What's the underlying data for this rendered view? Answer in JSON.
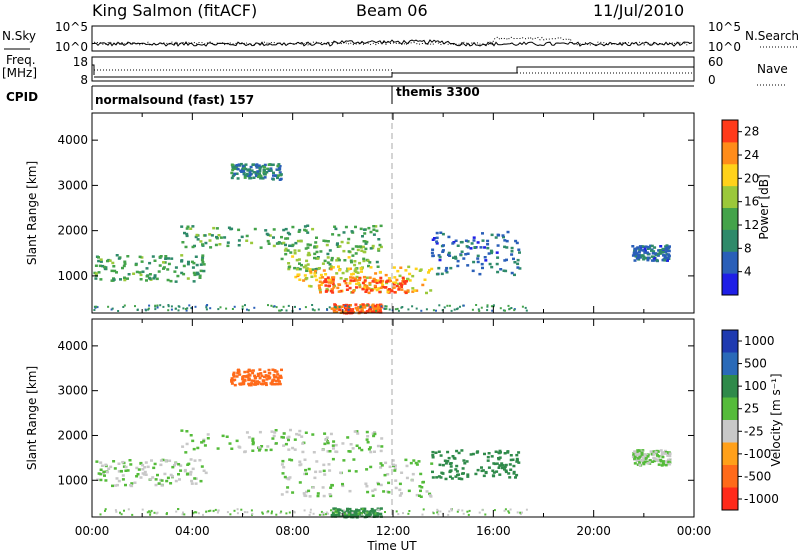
{
  "header": {
    "station": "King Salmon (fitACF)",
    "beam": "Beam 06",
    "date": "11/Jul/2010"
  },
  "left_labels": {
    "nsky": "N.Sky",
    "freq_line1": "Freq.",
    "freq_line2": "[MHz]",
    "cpid": "CPID"
  },
  "right_labels": {
    "nsearch": "N.Search",
    "nave": "Nave"
  },
  "noise_axis": {
    "left_ticks": [
      "10^5",
      "10^0"
    ],
    "right_ticks": [
      "10^5",
      "10^0"
    ]
  },
  "freq_axis": {
    "left_ticks": [
      "18",
      "8"
    ],
    "right_ticks": [
      "60",
      "0"
    ]
  },
  "cpid_bar": {
    "modes": [
      {
        "label": "normalsound (fast) 157",
        "start_hour": 0
      },
      {
        "label": "themis 3300",
        "start_hour": 12
      }
    ]
  },
  "chart_data": [
    {
      "type": "heatmap",
      "name": "power",
      "xlabel": "",
      "ylabel": "Slant Range [km]",
      "xlim": [
        0,
        24
      ],
      "ylim": [
        180,
        4600
      ],
      "yticks": [
        "1000",
        "2000",
        "3000",
        "4000"
      ],
      "colorbar": {
        "label": "Power [dB]",
        "ticks": [
          "4",
          "8",
          "12",
          "16",
          "20",
          "24",
          "28"
        ],
        "range": [
          0,
          30
        ],
        "colors": [
          "#1f1fe6",
          "#2a5fb8",
          "#2f8a6a",
          "#44a34a",
          "#9bc83a",
          "#ffd21a",
          "#ff8c1a",
          "#ff3a1a"
        ]
      },
      "regions": [
        {
          "t0": 0.0,
          "t1": 4.5,
          "r0": 900,
          "r1": 1500,
          "value": 12
        },
        {
          "t0": 3.5,
          "t1": 11.5,
          "r0": 1650,
          "r1": 2150,
          "value": 12
        },
        {
          "t0": 7.5,
          "t1": 11.5,
          "r0": 1100,
          "r1": 1800,
          "value": 15
        },
        {
          "t0": 8.0,
          "t1": 13.5,
          "r0": 650,
          "r1": 1250,
          "value": 20
        },
        {
          "t0": 9.0,
          "t1": 12.5,
          "r0": 650,
          "r1": 1000,
          "value": 26
        },
        {
          "t0": 5.5,
          "t1": 7.5,
          "r0": 3150,
          "r1": 3500,
          "value": 8
        },
        {
          "t0": 13.5,
          "t1": 17.0,
          "r0": 1050,
          "r1": 2000,
          "value": 7
        },
        {
          "t0": 9.5,
          "t1": 11.5,
          "r0": 200,
          "r1": 400,
          "value": 27
        },
        {
          "t0": 21.5,
          "t1": 23.0,
          "r0": 1350,
          "r1": 1700,
          "value": 7
        }
      ]
    },
    {
      "type": "heatmap",
      "name": "velocity",
      "xlabel": "Time UT",
      "ylabel": "Slant Range [km]",
      "xlim": [
        0,
        24
      ],
      "ylim": [
        180,
        4600
      ],
      "xticks": [
        "00:00",
        "04:00",
        "08:00",
        "12:00",
        "16:00",
        "20:00",
        "00:00"
      ],
      "yticks": [
        "1000",
        "2000",
        "3000",
        "4000"
      ],
      "colorbar": {
        "label": "Velocity [m s⁻¹]",
        "ticks": [
          "1000",
          "500",
          "100",
          "25",
          "-25",
          "-100",
          "-500",
          "-1000"
        ],
        "colors": [
          "#1f3ab0",
          "#2a6ab8",
          "#2f8a4a",
          "#55bb3a",
          "#c8c8c8",
          "#ffa01a",
          "#ff6a1a",
          "#ff2a1a"
        ]
      },
      "regions": [
        {
          "t0": 0.0,
          "t1": 4.5,
          "r0": 900,
          "r1": 1500,
          "value": 25
        },
        {
          "t0": 3.5,
          "t1": 11.5,
          "r0": 1650,
          "r1": 2150,
          "value": 25
        },
        {
          "t0": 7.5,
          "t1": 13.5,
          "r0": 650,
          "r1": 1500,
          "value": 25
        },
        {
          "t0": 5.5,
          "t1": 7.5,
          "r0": 3150,
          "r1": 3500,
          "value": -100
        },
        {
          "t0": 13.5,
          "t1": 17.0,
          "r0": 1050,
          "r1": 1700,
          "value": 100
        },
        {
          "t0": 21.5,
          "t1": 23.0,
          "r0": 1350,
          "r1": 1700,
          "value": 25
        },
        {
          "t0": 9.5,
          "t1": 11.5,
          "r0": 200,
          "r1": 400,
          "value": 100
        }
      ]
    }
  ]
}
